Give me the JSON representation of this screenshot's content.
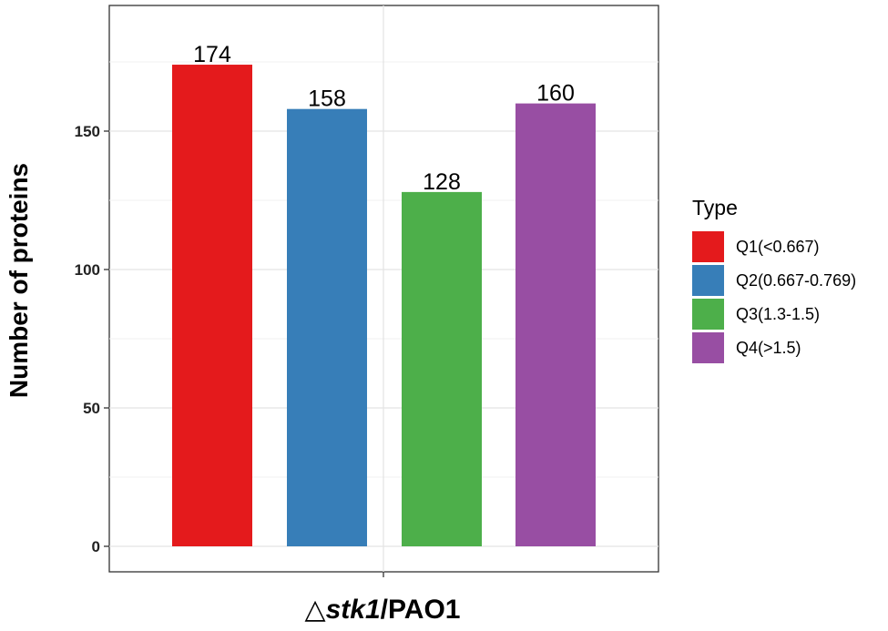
{
  "chart_data": {
    "type": "bar",
    "categories": [
      "Q1(<0.667)",
      "Q2(0.667-0.769)",
      "Q3(1.3-1.5)",
      "Q4(>1.5)"
    ],
    "values": [
      174,
      158,
      128,
      160
    ],
    "data_labels": [
      "174",
      "158",
      "128",
      "160"
    ],
    "colors": [
      "#e41a1c",
      "#377eb8",
      "#4daf4a",
      "#984ea3"
    ],
    "ylabel": "Number of proteins",
    "xlabel": {
      "prefix": "△",
      "gene": "stk1",
      "suffix": "/PAO1"
    },
    "yticks": [
      0,
      50,
      100,
      150
    ],
    "ylim": [
      -9,
      197
    ],
    "grid": true,
    "legend": {
      "title": "Type",
      "position": "right",
      "items": [
        "Q1(<0.667)",
        "Q2(0.667-0.769)",
        "Q3(1.3-1.5)",
        "Q4(>1.5)"
      ]
    }
  }
}
